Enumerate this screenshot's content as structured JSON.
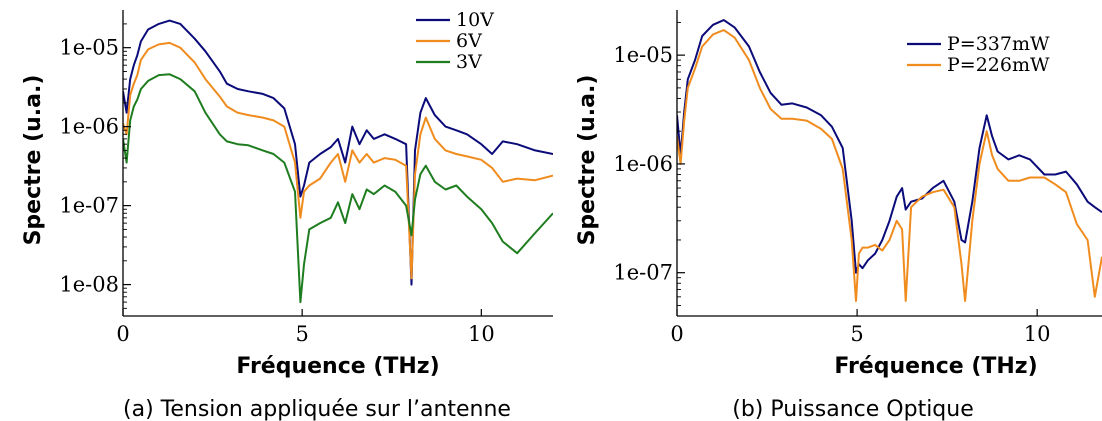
{
  "colors": {
    "navy": "#0b0b7a",
    "orange": "#f08c1e",
    "green": "#1e7d1e",
    "axis": "#000000"
  },
  "chart_data": [
    {
      "type": "line",
      "caption": "(a) Tension appliquée sur l’antenne",
      "xlabel": "Fréquence (THz)",
      "ylabel": "Spectre (u.a.)",
      "xlim": [
        0,
        12
      ],
      "ylim": [
        4e-09,
        3e-05
      ],
      "yscale": "log",
      "xticks": [
        0,
        5,
        10
      ],
      "xtick_labels": [
        "0",
        "5",
        "10"
      ],
      "yticks": [
        1e-08,
        1e-07,
        1e-06,
        1e-05
      ],
      "ytick_labels": [
        "1e-08",
        "1e-07",
        "1e-06",
        "1e-05"
      ],
      "legend_position": "top-right",
      "series": [
        {
          "name": "10V",
          "color": "#0b0b7a",
          "x": [
            0,
            0.1,
            0.2,
            0.3,
            0.4,
            0.5,
            0.7,
            1.0,
            1.3,
            1.6,
            2.0,
            2.3,
            2.7,
            2.9,
            3.2,
            3.5,
            3.9,
            4.2,
            4.5,
            4.8,
            4.95,
            5.05,
            5.2,
            5.5,
            5.8,
            6.0,
            6.2,
            6.4,
            6.6,
            6.8,
            7.0,
            7.3,
            7.6,
            7.9,
            8.05,
            8.15,
            8.3,
            8.45,
            8.7,
            9.0,
            9.3,
            9.6,
            10.0,
            10.3,
            10.6,
            11.0,
            11.5,
            12.0
          ],
          "y": [
            2.8e-06,
            1.5e-06,
            4e-06,
            6e-06,
            8e-06,
            1.2e-05,
            1.7e-05,
            2e-05,
            2.2e-05,
            2e-05,
            1.3e-05,
            9e-06,
            5e-06,
            3.5e-06,
            3e-06,
            2.8e-06,
            2.6e-06,
            2.3e-06,
            1.7e-06,
            6e-07,
            1.3e-07,
            1.8e-07,
            3.5e-07,
            4.5e-07,
            5.5e-07,
            7e-07,
            3.5e-07,
            1e-06,
            6e-07,
            9e-07,
            7e-07,
            8e-07,
            7e-07,
            6e-07,
            1e-08,
            5e-07,
            1.5e-06,
            2.3e-06,
            1.4e-06,
            1e-06,
            9e-07,
            8e-07,
            6e-07,
            4.5e-07,
            6.5e-07,
            6e-07,
            5e-07,
            4.5e-07
          ]
        },
        {
          "name": "6V",
          "color": "#f08c1e",
          "x": [
            0,
            0.1,
            0.2,
            0.3,
            0.4,
            0.5,
            0.7,
            1.0,
            1.3,
            1.6,
            2.0,
            2.3,
            2.7,
            2.9,
            3.2,
            3.5,
            3.9,
            4.2,
            4.5,
            4.8,
            4.95,
            5.05,
            5.2,
            5.5,
            5.8,
            6.0,
            6.2,
            6.4,
            6.6,
            6.8,
            7.0,
            7.3,
            7.6,
            7.9,
            8.05,
            8.15,
            8.3,
            8.45,
            8.7,
            9.0,
            9.3,
            9.6,
            10.0,
            10.3,
            10.6,
            11.0,
            11.5,
            12.0
          ],
          "y": [
            1.1e-06,
            8e-07,
            2.5e-06,
            3.5e-06,
            4.5e-06,
            7e-06,
            9.5e-06,
            1.1e-05,
            1.15e-05,
            1e-05,
            6.5e-06,
            4e-06,
            2.4e-06,
            1.8e-06,
            1.5e-06,
            1.4e-06,
            1.3e-06,
            1.2e-06,
            1e-06,
            3.5e-07,
            7e-08,
            1.5e-07,
            1.8e-07,
            2.2e-07,
            3.5e-07,
            4.5e-07,
            2e-07,
            5e-07,
            3.5e-07,
            4.5e-07,
            3.5e-07,
            4e-07,
            3.8e-07,
            3.2e-07,
            1.2e-08,
            2.5e-07,
            8e-07,
            1.3e-06,
            7e-07,
            5e-07,
            4.5e-07,
            4.2e-07,
            3.8e-07,
            3e-07,
            2e-07,
            2.2e-07,
            2.1e-07,
            2.4e-07
          ]
        },
        {
          "name": "3V",
          "color": "#1e7d1e",
          "x": [
            0,
            0.1,
            0.2,
            0.3,
            0.4,
            0.5,
            0.7,
            1.0,
            1.3,
            1.6,
            2.0,
            2.3,
            2.7,
            2.9,
            3.2,
            3.5,
            3.9,
            4.2,
            4.5,
            4.8,
            4.95,
            5.05,
            5.2,
            5.5,
            5.8,
            6.0,
            6.2,
            6.4,
            6.6,
            6.8,
            7.0,
            7.3,
            7.6,
            7.9,
            8.05,
            8.15,
            8.3,
            8.45,
            8.7,
            9.0,
            9.3,
            9.6,
            10.0,
            10.3,
            10.6,
            11.0,
            11.5,
            12.0
          ],
          "y": [
            7e-07,
            3.5e-07,
            1.2e-06,
            1.8e-06,
            2.2e-06,
            3e-06,
            3.8e-06,
            4.5e-06,
            4.6e-06,
            4e-06,
            2.8e-06,
            1.5e-06,
            8e-07,
            6.5e-07,
            6e-07,
            5.8e-07,
            5e-07,
            4.5e-07,
            3.5e-07,
            1.5e-07,
            6e-09,
            1.8e-08,
            5e-08,
            6e-08,
            7e-08,
            1.1e-07,
            6e-08,
            1.4e-07,
            9e-08,
            1.6e-07,
            1.4e-07,
            1.8e-07,
            1.5e-07,
            1e-07,
            4.2e-08,
            1.2e-07,
            2.5e-07,
            3.2e-07,
            2e-07,
            1.6e-07,
            1.8e-07,
            1.3e-07,
            9e-08,
            6e-08,
            3.5e-08,
            2.5e-08,
            4.5e-08,
            8e-08
          ]
        }
      ]
    },
    {
      "type": "line",
      "caption": "(b) Puissance Optique",
      "xlabel": "Fréquence (THz)",
      "ylabel": "Spectre (u.a.)",
      "xlim": [
        0,
        11.8
      ],
      "ylim": [
        4e-08,
        2.6e-05
      ],
      "yscale": "log",
      "xticks": [
        0,
        5,
        10
      ],
      "xtick_labels": [
        "0",
        "5",
        "10"
      ],
      "yticks": [
        1e-07,
        1e-06,
        1e-05
      ],
      "ytick_labels": [
        "1e-07",
        "1e-06",
        "1e-05"
      ],
      "legend_position": "top-right",
      "series": [
        {
          "name": "P=337mW",
          "color": "#0b0b7a",
          "x": [
            0,
            0.1,
            0.2,
            0.3,
            0.5,
            0.7,
            1.0,
            1.3,
            1.6,
            2.0,
            2.3,
            2.6,
            2.9,
            3.2,
            3.6,
            4.0,
            4.3,
            4.6,
            4.85,
            4.97,
            5.05,
            5.15,
            5.3,
            5.5,
            5.7,
            5.9,
            6.1,
            6.25,
            6.35,
            6.5,
            6.8,
            7.1,
            7.4,
            7.7,
            7.9,
            8.0,
            8.2,
            8.4,
            8.6,
            8.75,
            8.9,
            9.2,
            9.5,
            9.8,
            10.2,
            10.5,
            10.8,
            11.1,
            11.4,
            11.6,
            11.8
          ],
          "y": [
            2.8e-06,
            1.2e-06,
            3e-06,
            6e-06,
            9e-06,
            1.5e-05,
            1.9e-05,
            2.1e-05,
            1.8e-05,
            1.2e-05,
            7e-06,
            4.5e-06,
            3.5e-06,
            3.6e-06,
            3.3e-06,
            2.8e-06,
            2.2e-06,
            1.4e-06,
            3e-07,
            1e-07,
            1.2e-07,
            1.1e-07,
            1.3e-07,
            1.5e-07,
            2e-07,
            3e-07,
            5e-07,
            6e-07,
            3.8e-07,
            4.5e-07,
            4.8e-07,
            6e-07,
            7e-07,
            4.5e-07,
            2e-07,
            1.9e-07,
            4.5e-07,
            1.4e-06,
            2.8e-06,
            1.8e-06,
            1.3e-06,
            1.1e-06,
            1.2e-06,
            1.1e-06,
            8e-07,
            8e-07,
            8.5e-07,
            6.5e-07,
            4.5e-07,
            4e-07,
            3.6e-07
          ]
        },
        {
          "name": "P=226mW",
          "color": "#f08c1e",
          "x": [
            0,
            0.1,
            0.2,
            0.3,
            0.5,
            0.7,
            1.0,
            1.3,
            1.6,
            2.0,
            2.3,
            2.6,
            2.9,
            3.2,
            3.6,
            4.0,
            4.3,
            4.6,
            4.85,
            4.97,
            5.05,
            5.15,
            5.3,
            5.5,
            5.7,
            5.9,
            6.1,
            6.25,
            6.35,
            6.5,
            6.8,
            7.1,
            7.4,
            7.7,
            7.9,
            8.0,
            8.2,
            8.4,
            8.6,
            8.75,
            8.9,
            9.2,
            9.5,
            9.8,
            10.2,
            10.5,
            10.8,
            11.1,
            11.4,
            11.6,
            11.8
          ],
          "y": [
            1.8e-06,
            1e-06,
            2.5e-06,
            5e-06,
            7.5e-06,
            1.2e-05,
            1.55e-05,
            1.7e-05,
            1.45e-05,
            9e-06,
            5e-06,
            3.2e-06,
            2.6e-06,
            2.6e-06,
            2.5e-06,
            2.1e-06,
            1.7e-06,
            9e-07,
            2e-07,
            5.5e-08,
            1.5e-07,
            1.7e-07,
            1.7e-07,
            1.8e-07,
            1.6e-07,
            2e-07,
            3e-07,
            2.5e-07,
            5.5e-08,
            4e-07,
            5e-07,
            5.5e-07,
            5.8e-07,
            4e-07,
            1.2e-07,
            5.5e-08,
            3e-07,
            1e-06,
            2e-06,
            1.2e-06,
            9e-07,
            7e-07,
            7e-07,
            7.5e-07,
            7.5e-07,
            6.5e-07,
            5.5e-07,
            2.8e-07,
            2e-07,
            6e-08,
            1.4e-07
          ]
        }
      ]
    }
  ]
}
